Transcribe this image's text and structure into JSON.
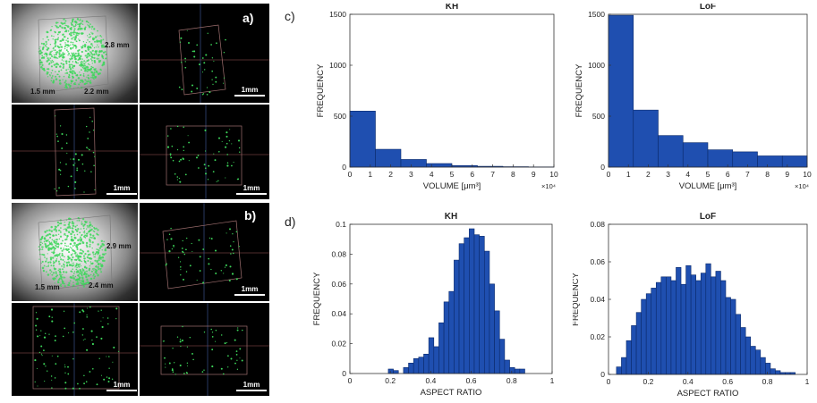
{
  "images": {
    "a": {
      "label": "a)",
      "dims": [
        "2.8 mm",
        "1.5 mm",
        "2.2 mm"
      ],
      "scale_bars": [
        "1mm",
        "1mm",
        "1mm"
      ]
    },
    "b": {
      "label": "b)",
      "dims": [
        "2.9 mm",
        "1.5 mm",
        "2.4 mm"
      ],
      "scale_bars": [
        "1mm",
        "1mm",
        "1mm"
      ]
    }
  },
  "section_labels": {
    "c": "c)",
    "d": "d)"
  },
  "colors": {
    "bar": "#1f4fb0",
    "bar_edge": "#0b2a6b",
    "axis": "#333333",
    "particles": "#3dd65a"
  },
  "chart_data": [
    {
      "type": "bar",
      "title": "KH",
      "xlabel": "VOLUME [μm³]",
      "ylabel": "FREQUENCY",
      "x_multiplier": "×10⁴",
      "xlim": [
        0,
        10
      ],
      "ylim": [
        0,
        1500
      ],
      "xticks": [
        0,
        1,
        2,
        3,
        4,
        5,
        6,
        7,
        8,
        9,
        10
      ],
      "yticks": [
        0,
        500,
        1000,
        1500
      ],
      "bin_edges": [
        0,
        1.25,
        2.5,
        3.75,
        5,
        6.25,
        7.5,
        8.75,
        10
      ],
      "values": [
        550,
        175,
        75,
        35,
        15,
        8,
        4,
        2
      ]
    },
    {
      "type": "bar",
      "title": "LoF",
      "xlabel": "VOLUME [μm³]",
      "ylabel": "FREQUENCY",
      "x_multiplier": "×10⁴",
      "xlim": [
        0,
        10
      ],
      "ylim": [
        0,
        1500
      ],
      "xticks": [
        0,
        1,
        2,
        3,
        4,
        5,
        6,
        7,
        8,
        9,
        10
      ],
      "yticks": [
        0,
        500,
        1000,
        1500
      ],
      "bin_edges": [
        0,
        1.25,
        2.5,
        3.75,
        5,
        6.25,
        7.5,
        8.75,
        10
      ],
      "values": [
        1490,
        560,
        310,
        240,
        170,
        150,
        110,
        110
      ]
    },
    {
      "type": "bar",
      "title": "KH",
      "xlabel": "ASPECT RATIO",
      "ylabel": "FREQUENCY",
      "xlim": [
        0,
        1
      ],
      "ylim": [
        0,
        0.1
      ],
      "xticks": [
        0,
        0.2,
        0.4,
        0.6,
        0.8,
        1
      ],
      "yticks": [
        0,
        0.02,
        0.04,
        0.06,
        0.08,
        0.1
      ],
      "bin_start": 0.04,
      "bin_width": 0.025,
      "values": [
        0,
        0,
        0,
        0,
        0,
        0,
        0.003,
        0.002,
        0,
        0.004,
        0.007,
        0.01,
        0.011,
        0.013,
        0.024,
        0.018,
        0.034,
        0.048,
        0.055,
        0.076,
        0.087,
        0.091,
        0.097,
        0.093,
        0.092,
        0.082,
        0.06,
        0.042,
        0.023,
        0.009,
        0.004,
        0.003,
        0.003
      ]
    },
    {
      "type": "bar",
      "title": "LoF",
      "xlabel": "ASPECT RATIO",
      "ylabel": "FREQUENCY",
      "xlim": [
        0,
        1
      ],
      "ylim": [
        0,
        0.08
      ],
      "xticks": [
        0,
        0.2,
        0.4,
        0.6,
        0.8,
        1
      ],
      "yticks": [
        0,
        0.02,
        0.04,
        0.06,
        0.08
      ],
      "bin_start": 0.04,
      "bin_width": 0.025,
      "values": [
        0.004,
        0.009,
        0.018,
        0.026,
        0.033,
        0.04,
        0.043,
        0.046,
        0.049,
        0.052,
        0.052,
        0.05,
        0.057,
        0.048,
        0.058,
        0.053,
        0.05,
        0.054,
        0.059,
        0.052,
        0.055,
        0.05,
        0.041,
        0.04,
        0.032,
        0.025,
        0.02,
        0.015,
        0.013,
        0.009,
        0.006,
        0.003,
        0.002,
        0.001,
        0.001,
        0.001
      ]
    }
  ]
}
